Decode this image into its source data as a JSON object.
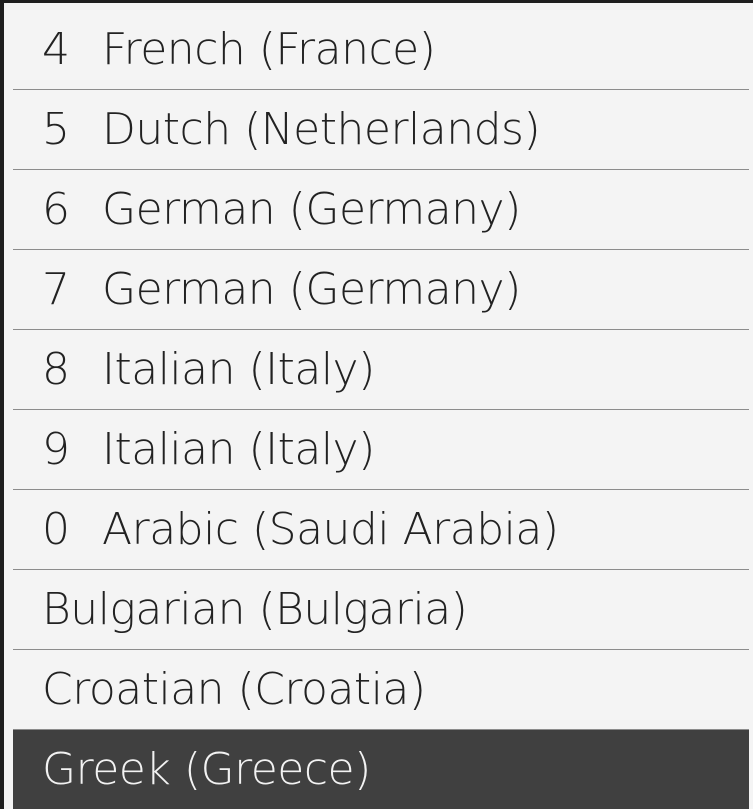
{
  "items": [
    {
      "num": "4",
      "label": "French (France)",
      "selected": false
    },
    {
      "num": "5",
      "label": "Dutch (Netherlands)",
      "selected": false
    },
    {
      "num": "6",
      "label": "German (Germany)",
      "selected": false
    },
    {
      "num": "7",
      "label": "German (Germany)",
      "selected": false
    },
    {
      "num": "8",
      "label": "Italian (Italy)",
      "selected": false
    },
    {
      "num": "9",
      "label": "Italian (Italy)",
      "selected": false
    },
    {
      "num": "0",
      "label": "Arabic (Saudi Arabia)",
      "selected": false
    },
    {
      "num": "",
      "label": "Bulgarian (Bulgaria)",
      "selected": false
    },
    {
      "num": "",
      "label": "Croatian (Croatia)",
      "selected": false
    },
    {
      "num": "",
      "label": "Greek (Greece)",
      "selected": true
    }
  ],
  "colors": {
    "selected_bg": "#404040",
    "list_bg": "#f4f4f4"
  }
}
